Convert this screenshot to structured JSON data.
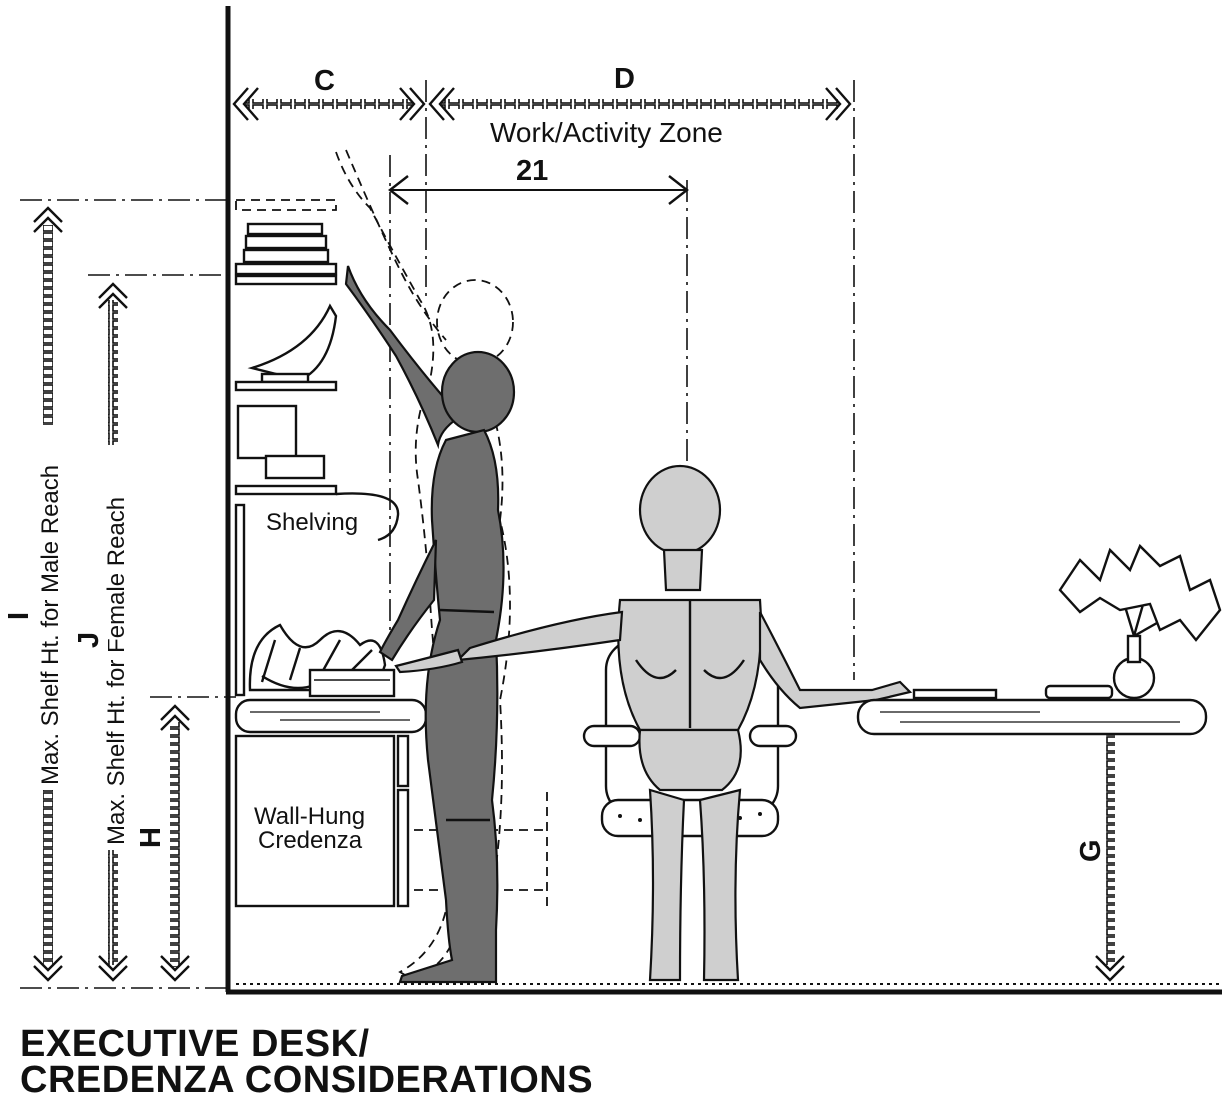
{
  "title_lines": [
    "EXECUTIVE DESK/",
    "CREDENZA CONSIDERATIONS"
  ],
  "dimensions": {
    "c": "C",
    "d": "D",
    "reach": "21",
    "g": "G",
    "h": "H",
    "i": "I",
    "j": "J"
  },
  "labels": {
    "work_zone": "Work/Activity Zone",
    "shelving": "Shelving",
    "credenza_line1": "Wall-Hung",
    "credenza_line2": "Credenza",
    "male_reach": "Max. Shelf Ht. for Male Reach",
    "female_reach": "Max. Shelf Ht. for Female Reach"
  }
}
